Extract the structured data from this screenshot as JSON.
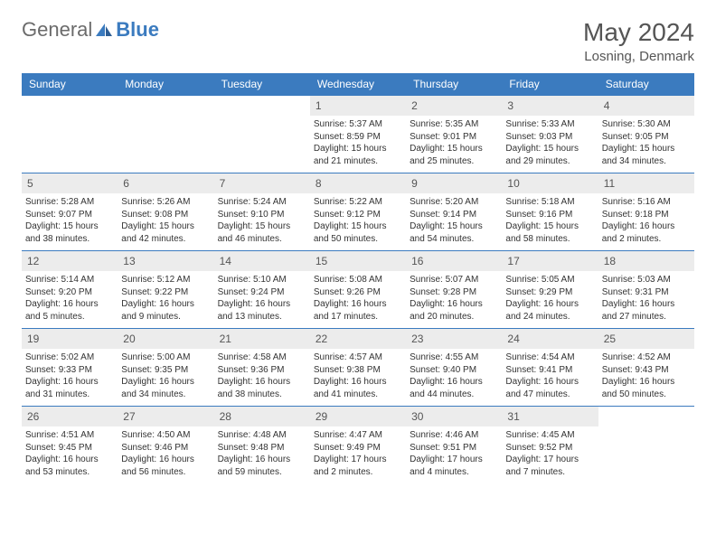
{
  "brand": {
    "part1": "General",
    "part2": "Blue"
  },
  "header": {
    "title": "May 2024",
    "location": "Losning, Denmark"
  },
  "colors": {
    "accent": "#3b7bbf",
    "dayNumBg": "#ececec",
    "text": "#333333"
  },
  "dow": [
    "Sunday",
    "Monday",
    "Tuesday",
    "Wednesday",
    "Thursday",
    "Friday",
    "Saturday"
  ],
  "weeks": [
    [
      null,
      null,
      null,
      {
        "n": "1",
        "sr": "5:37 AM",
        "ss": "8:59 PM",
        "dl": "15 hours and 21 minutes."
      },
      {
        "n": "2",
        "sr": "5:35 AM",
        "ss": "9:01 PM",
        "dl": "15 hours and 25 minutes."
      },
      {
        "n": "3",
        "sr": "5:33 AM",
        "ss": "9:03 PM",
        "dl": "15 hours and 29 minutes."
      },
      {
        "n": "4",
        "sr": "5:30 AM",
        "ss": "9:05 PM",
        "dl": "15 hours and 34 minutes."
      }
    ],
    [
      {
        "n": "5",
        "sr": "5:28 AM",
        "ss": "9:07 PM",
        "dl": "15 hours and 38 minutes."
      },
      {
        "n": "6",
        "sr": "5:26 AM",
        "ss": "9:08 PM",
        "dl": "15 hours and 42 minutes."
      },
      {
        "n": "7",
        "sr": "5:24 AM",
        "ss": "9:10 PM",
        "dl": "15 hours and 46 minutes."
      },
      {
        "n": "8",
        "sr": "5:22 AM",
        "ss": "9:12 PM",
        "dl": "15 hours and 50 minutes."
      },
      {
        "n": "9",
        "sr": "5:20 AM",
        "ss": "9:14 PM",
        "dl": "15 hours and 54 minutes."
      },
      {
        "n": "10",
        "sr": "5:18 AM",
        "ss": "9:16 PM",
        "dl": "15 hours and 58 minutes."
      },
      {
        "n": "11",
        "sr": "5:16 AM",
        "ss": "9:18 PM",
        "dl": "16 hours and 2 minutes."
      }
    ],
    [
      {
        "n": "12",
        "sr": "5:14 AM",
        "ss": "9:20 PM",
        "dl": "16 hours and 5 minutes."
      },
      {
        "n": "13",
        "sr": "5:12 AM",
        "ss": "9:22 PM",
        "dl": "16 hours and 9 minutes."
      },
      {
        "n": "14",
        "sr": "5:10 AM",
        "ss": "9:24 PM",
        "dl": "16 hours and 13 minutes."
      },
      {
        "n": "15",
        "sr": "5:08 AM",
        "ss": "9:26 PM",
        "dl": "16 hours and 17 minutes."
      },
      {
        "n": "16",
        "sr": "5:07 AM",
        "ss": "9:28 PM",
        "dl": "16 hours and 20 minutes."
      },
      {
        "n": "17",
        "sr": "5:05 AM",
        "ss": "9:29 PM",
        "dl": "16 hours and 24 minutes."
      },
      {
        "n": "18",
        "sr": "5:03 AM",
        "ss": "9:31 PM",
        "dl": "16 hours and 27 minutes."
      }
    ],
    [
      {
        "n": "19",
        "sr": "5:02 AM",
        "ss": "9:33 PM",
        "dl": "16 hours and 31 minutes."
      },
      {
        "n": "20",
        "sr": "5:00 AM",
        "ss": "9:35 PM",
        "dl": "16 hours and 34 minutes."
      },
      {
        "n": "21",
        "sr": "4:58 AM",
        "ss": "9:36 PM",
        "dl": "16 hours and 38 minutes."
      },
      {
        "n": "22",
        "sr": "4:57 AM",
        "ss": "9:38 PM",
        "dl": "16 hours and 41 minutes."
      },
      {
        "n": "23",
        "sr": "4:55 AM",
        "ss": "9:40 PM",
        "dl": "16 hours and 44 minutes."
      },
      {
        "n": "24",
        "sr": "4:54 AM",
        "ss": "9:41 PM",
        "dl": "16 hours and 47 minutes."
      },
      {
        "n": "25",
        "sr": "4:52 AM",
        "ss": "9:43 PM",
        "dl": "16 hours and 50 minutes."
      }
    ],
    [
      {
        "n": "26",
        "sr": "4:51 AM",
        "ss": "9:45 PM",
        "dl": "16 hours and 53 minutes."
      },
      {
        "n": "27",
        "sr": "4:50 AM",
        "ss": "9:46 PM",
        "dl": "16 hours and 56 minutes."
      },
      {
        "n": "28",
        "sr": "4:48 AM",
        "ss": "9:48 PM",
        "dl": "16 hours and 59 minutes."
      },
      {
        "n": "29",
        "sr": "4:47 AM",
        "ss": "9:49 PM",
        "dl": "17 hours and 2 minutes."
      },
      {
        "n": "30",
        "sr": "4:46 AM",
        "ss": "9:51 PM",
        "dl": "17 hours and 4 minutes."
      },
      {
        "n": "31",
        "sr": "4:45 AM",
        "ss": "9:52 PM",
        "dl": "17 hours and 7 minutes."
      },
      null
    ]
  ],
  "labels": {
    "sunrise": "Sunrise: ",
    "sunset": "Sunset: ",
    "daylight": "Daylight: "
  }
}
